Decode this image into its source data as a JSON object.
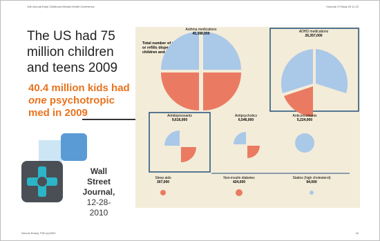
{
  "header": {
    "left": "11th Annual Early Childhood Mental Health Conference",
    "right": "Keynote 3 Friday 03 11 22"
  },
  "slide": {
    "headline": "The US had 75 million  children and teens 2009",
    "highlight": {
      "before": "40.4 million kids had ",
      "emphasis": "one",
      "after": " psychotropic med in 2009"
    },
    "source": {
      "name": "Wall Street Journal,",
      "date": "12-28-2010"
    }
  },
  "infographic": {
    "intro": "Total number of prescriptions or refills dispensed to children and teens in 2009",
    "groups": [
      {
        "name": "Asthma medications",
        "total": "45,388,000"
      },
      {
        "name": "ADHD medications",
        "total": "26,357,000"
      },
      {
        "name": "Antidepressants",
        "total": "9,616,000"
      },
      {
        "name": "Antipsychotics",
        "total": "6,546,000"
      },
      {
        "name": "Anticonvulsants",
        "total": "5,224,000"
      },
      {
        "name": "Sleep aids",
        "total": "307,000"
      },
      {
        "name": "Non-insulin diabetes",
        "total": "424,000"
      },
      {
        "name": "Statins (high cholesterol)",
        "total": "94,000"
      }
    ]
  },
  "footer": {
    "left": "Dennis Embry, PhD (c)2020",
    "right": "16"
  }
}
